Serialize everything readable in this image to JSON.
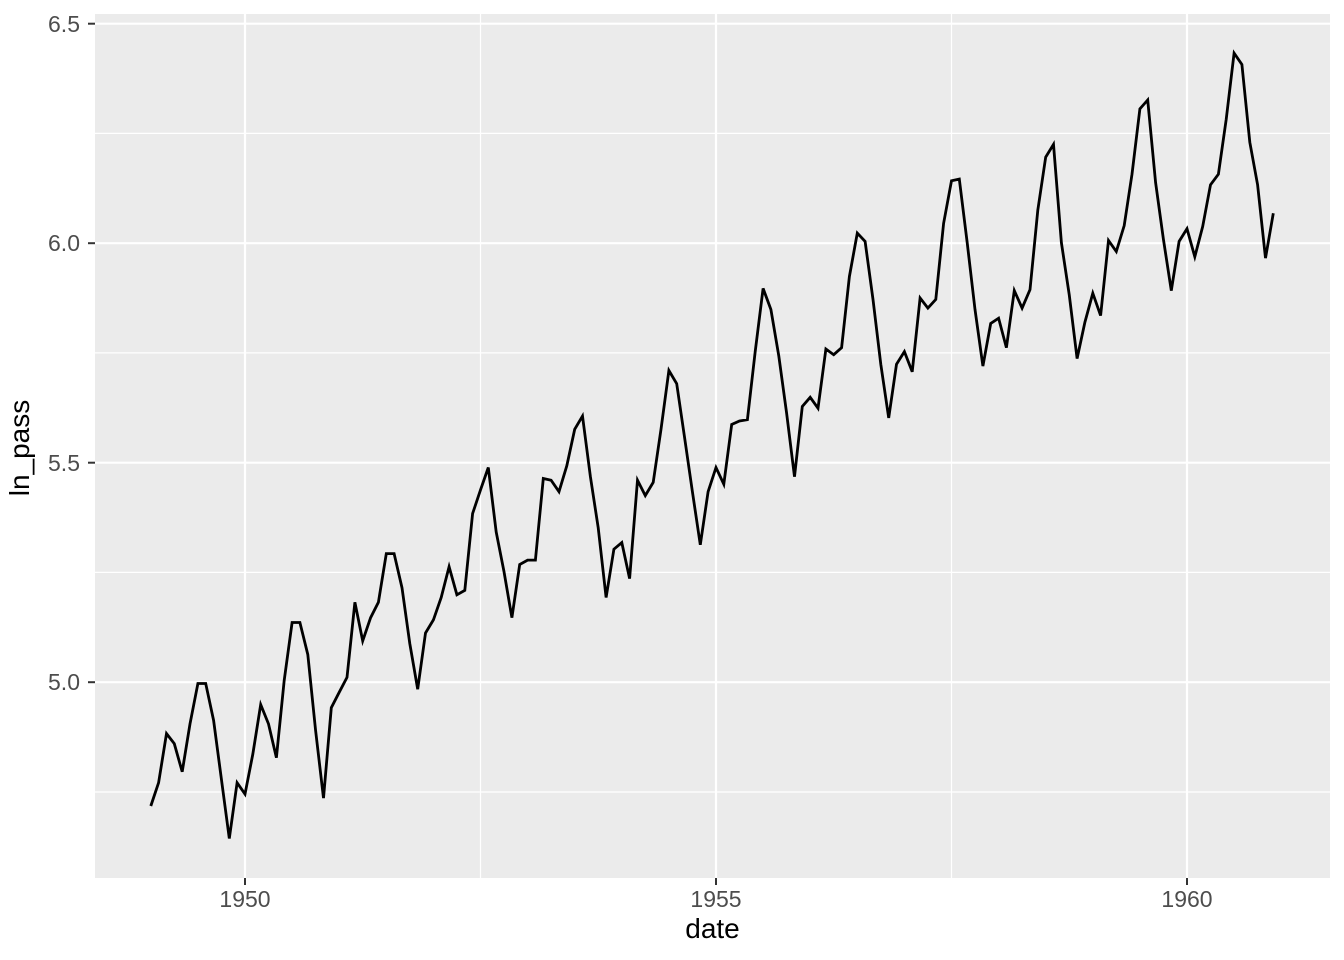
{
  "page": {
    "background_color": "#FFFFFF"
  },
  "chart_data": {
    "type": "line",
    "title": "",
    "xlabel": "date",
    "ylabel": "ln_pass",
    "legend": "none",
    "grid": {
      "enabled": true,
      "panel_background": "#EBEBEB",
      "major_color": "#FFFFFF",
      "minor_color": "#FFFFFF"
    },
    "styles": {
      "line_color": "#000000",
      "axis_text_color": "#4D4D4D",
      "axis_title_color": "#000000",
      "tick_mark_color": "#333333"
    },
    "x_axis": {
      "label": "date",
      "lim": [
        1948.408,
        1961.518
      ],
      "ticks": [
        1950,
        1955,
        1960
      ],
      "tick_labels": [
        "1950",
        "1955",
        "1960"
      ],
      "minor_breaks": [
        1952.5,
        1957.5
      ]
    },
    "y_axis": {
      "label": "ln_pass",
      "lim": [
        4.554,
        6.522
      ],
      "ticks": [
        5.0,
        5.5,
        6.0,
        6.5
      ],
      "tick_labels": [
        "5.0",
        "5.5",
        "6.0",
        "6.5"
      ],
      "minor_breaks": [
        4.75,
        5.25,
        5.75,
        6.25
      ]
    },
    "series": [
      {
        "name": "ln_pass",
        "color": "#000000",
        "x_start_year": 1949,
        "x_step_years": 0.083333,
        "values": [
          4.718,
          4.771,
          4.883,
          4.86,
          4.796,
          4.905,
          4.997,
          4.997,
          4.913,
          4.779,
          4.644,
          4.771,
          4.745,
          4.836,
          4.949,
          4.905,
          4.828,
          5.004,
          5.136,
          5.136,
          5.063,
          4.89,
          4.736,
          4.942,
          4.977,
          5.011,
          5.182,
          5.094,
          5.147,
          5.182,
          5.293,
          5.293,
          5.215,
          5.088,
          4.984,
          5.112,
          5.142,
          5.193,
          5.263,
          5.199,
          5.209,
          5.384,
          5.438,
          5.489,
          5.342,
          5.252,
          5.147,
          5.268,
          5.278,
          5.278,
          5.464,
          5.46,
          5.434,
          5.493,
          5.576,
          5.606,
          5.468,
          5.352,
          5.193,
          5.303,
          5.318,
          5.236,
          5.46,
          5.425,
          5.455,
          5.576,
          5.71,
          5.68,
          5.557,
          5.434,
          5.313,
          5.434,
          5.489,
          5.451,
          5.587,
          5.595,
          5.598,
          5.753,
          5.897,
          5.849,
          5.743,
          5.613,
          5.468,
          5.628,
          5.649,
          5.624,
          5.759,
          5.746,
          5.762,
          5.924,
          6.023,
          6.004,
          5.872,
          5.724,
          5.602,
          5.724,
          5.753,
          5.707,
          5.875,
          5.852,
          5.872,
          6.045,
          6.142,
          6.146,
          6.001,
          5.849,
          5.72,
          5.817,
          5.829,
          5.762,
          5.892,
          5.852,
          5.894,
          6.075,
          6.196,
          6.225,
          6.001,
          5.883,
          5.737,
          5.82,
          5.886,
          5.835,
          6.006,
          5.981,
          6.04,
          6.157,
          6.306,
          6.326,
          6.138,
          6.009,
          5.892,
          6.004,
          6.033,
          5.969,
          6.038,
          6.133,
          6.157,
          6.282,
          6.433,
          6.407,
          6.23,
          6.133,
          5.966,
          6.068
        ]
      }
    ]
  }
}
